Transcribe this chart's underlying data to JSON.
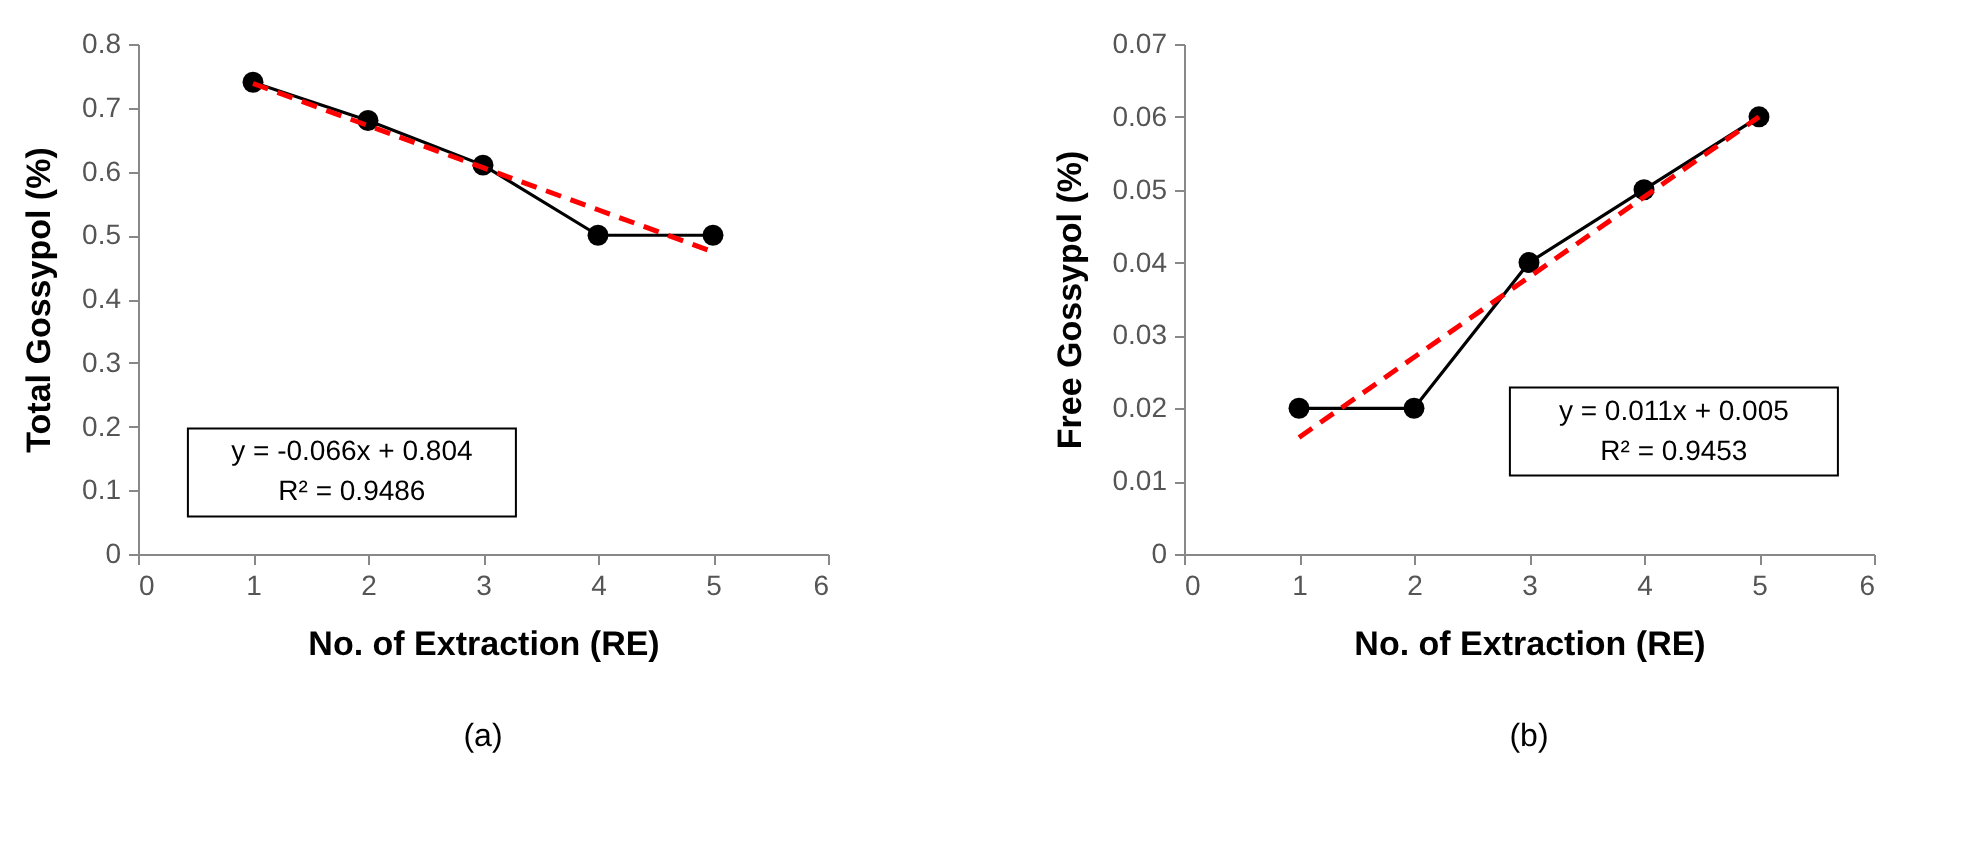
{
  "chart_data": [
    {
      "type": "line",
      "xlabel": "No. of Extraction (RE)",
      "ylabel": "Total Gossypol (%)",
      "xlim": [
        0,
        6
      ],
      "xticks": [
        0,
        1,
        2,
        3,
        4,
        5,
        6
      ],
      "ylim": [
        0,
        0.8
      ],
      "yticks": [
        0,
        0.1,
        0.2,
        0.3,
        0.4,
        0.5,
        0.6,
        0.7,
        0.8
      ],
      "grid": false,
      "marker": "circle",
      "x": [
        1,
        2,
        3,
        4,
        5
      ],
      "series": [
        {
          "color": "#000000",
          "values": [
            0.74,
            0.68,
            0.61,
            0.5,
            0.5
          ]
        },
        {
          "type": "line",
          "color": "#ff0000",
          "line_style": "dashed",
          "marker": "none",
          "values": [
            0.738,
            0.672,
            0.606,
            0.54,
            0.474
          ]
        }
      ],
      "annotations": [
        "y = -0.066x + 0.804",
        "R² = 0.9486",
        "(a)"
      ]
    },
    {
      "type": "line",
      "xlabel": "No. of Extraction (RE)",
      "ylabel": "Free Gossypol (%)",
      "xlim": [
        0,
        6
      ],
      "xticks": [
        0,
        1,
        2,
        3,
        4,
        5,
        6
      ],
      "ylim": [
        0,
        0.07
      ],
      "yticks": [
        0,
        0.01,
        0.02,
        0.03,
        0.04,
        0.05,
        0.06,
        0.07
      ],
      "grid": false,
      "marker": "circle",
      "x": [
        1,
        2,
        3,
        4,
        5
      ],
      "series": [
        {
          "color": "#000000",
          "values": [
            0.02,
            0.02,
            0.04,
            0.05,
            0.06
          ]
        },
        {
          "type": "line",
          "color": "#ff0000",
          "line_style": "dashed",
          "marker": "none",
          "values": [
            0.016,
            0.027,
            0.038,
            0.049,
            0.06
          ]
        }
      ],
      "annotations": [
        "y = 0.011x + 0.005",
        "R² = 0.9453",
        "(b)"
      ]
    }
  ]
}
